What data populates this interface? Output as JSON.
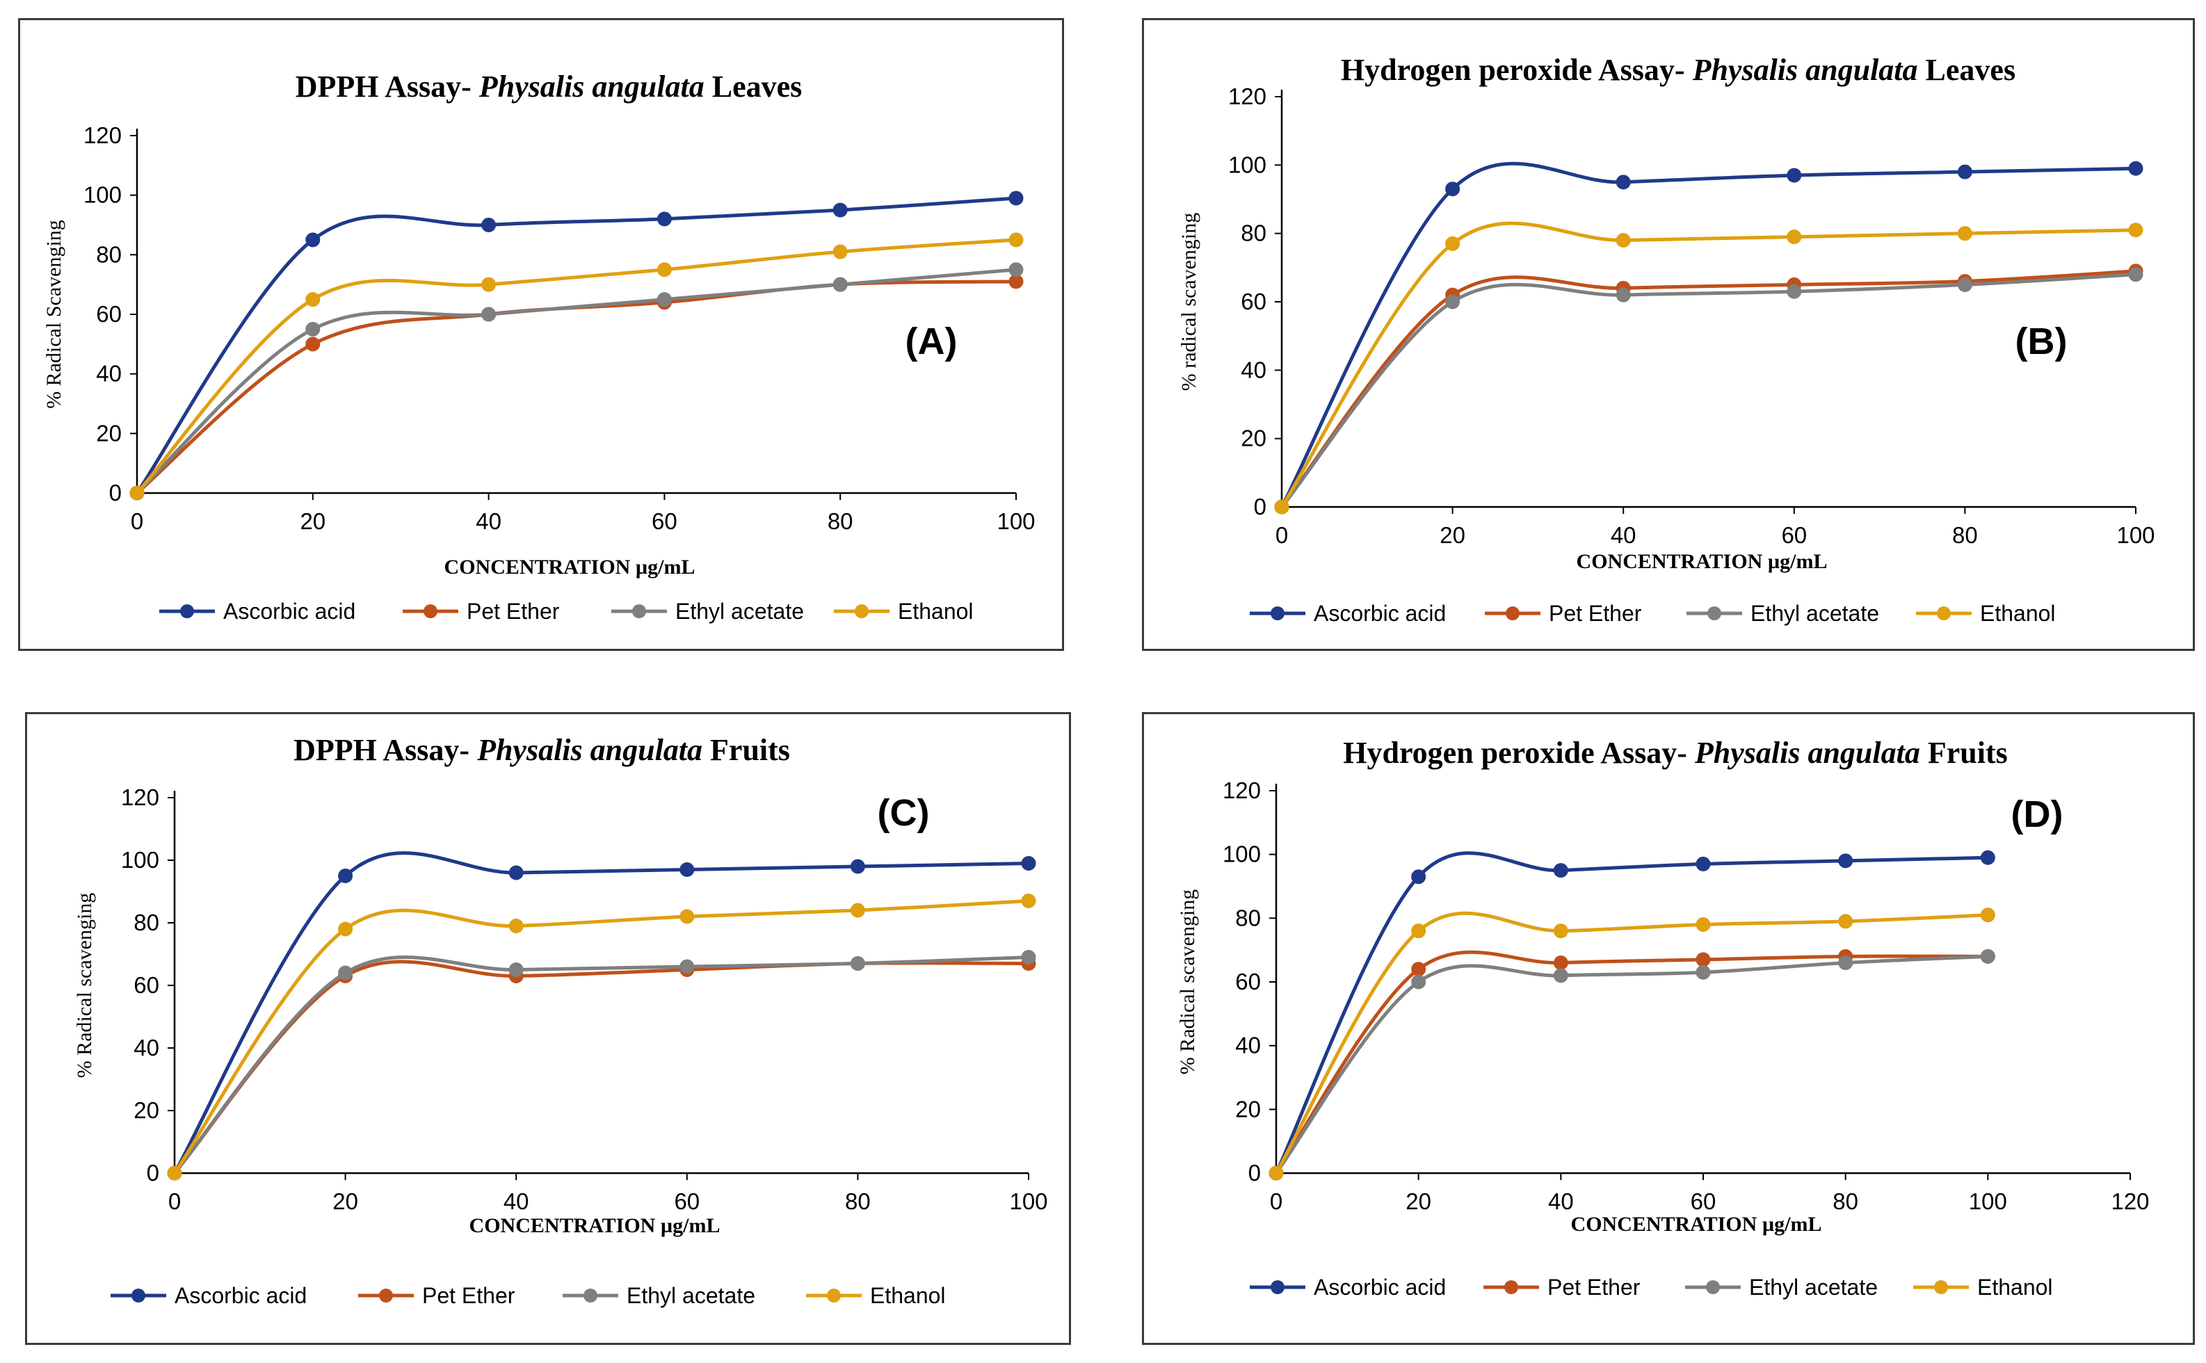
{
  "chart_data": [
    {
      "id": "A",
      "type": "line",
      "title_prefix": "DPPH Assay- ",
      "title_italic": "Physalis angulata",
      "title_suffix": " Leaves",
      "panel_label": "(A)",
      "xlabel": "CONCENTRATION µg/mL",
      "ylabel": "% Radical Scavenging",
      "x": [
        0,
        20,
        40,
        60,
        80,
        100
      ],
      "xticks": [
        0,
        20,
        40,
        60,
        80,
        100
      ],
      "xlim": [
        0,
        100
      ],
      "yticks": [
        0,
        20,
        40,
        60,
        80,
        100,
        120
      ],
      "ylim": [
        0,
        120
      ],
      "series": [
        {
          "name": "Ascorbic acid",
          "color": "#1f3a8a",
          "values": [
            0,
            85,
            90,
            92,
            95,
            99
          ]
        },
        {
          "name": "Pet Ether",
          "color": "#c0501a",
          "values": [
            0,
            50,
            60,
            64,
            70,
            71
          ]
        },
        {
          "name": "Ethyl acetate",
          "color": "#7f7f7f",
          "values": [
            0,
            55,
            60,
            65,
            70,
            75
          ]
        },
        {
          "name": "Ethanol",
          "color": "#e0a010",
          "values": [
            0,
            65,
            70,
            75,
            81,
            85
          ]
        }
      ]
    },
    {
      "id": "B",
      "type": "line",
      "title_prefix": "Hydrogen peroxide Assay- ",
      "title_italic": "Physalis angulata",
      "title_suffix": " Leaves",
      "panel_label": "(B)",
      "xlabel": "CONCENTRATION µg/mL",
      "ylabel": "% radical  scavenging",
      "x": [
        0,
        20,
        40,
        60,
        80,
        100
      ],
      "xticks": [
        0,
        20,
        40,
        60,
        80,
        100
      ],
      "xlim": [
        0,
        100
      ],
      "yticks": [
        0,
        20,
        40,
        60,
        80,
        100,
        120
      ],
      "ylim": [
        0,
        120
      ],
      "series": [
        {
          "name": "Ascorbic acid",
          "color": "#1f3a8a",
          "values": [
            0,
            93,
            95,
            97,
            98,
            99
          ]
        },
        {
          "name": "Pet Ether",
          "color": "#c0501a",
          "values": [
            0,
            62,
            64,
            65,
            66,
            69
          ]
        },
        {
          "name": "Ethyl acetate",
          "color": "#7f7f7f",
          "values": [
            0,
            60,
            62,
            63,
            65,
            68
          ]
        },
        {
          "name": "Ethanol",
          "color": "#e0a010",
          "values": [
            0,
            77,
            78,
            79,
            80,
            81
          ]
        }
      ]
    },
    {
      "id": "C",
      "type": "line",
      "title_prefix": "DPPH Assay- ",
      "title_italic": "Physalis angulata",
      "title_suffix": " Fruits",
      "panel_label": "(C)",
      "xlabel": "CONCENTRATION µg/mL",
      "ylabel": "% Radical scavenging",
      "x": [
        0,
        20,
        40,
        60,
        80,
        100
      ],
      "xticks": [
        0,
        20,
        40,
        60,
        80,
        100
      ],
      "xlim": [
        0,
        100
      ],
      "yticks": [
        0,
        20,
        40,
        60,
        80,
        100,
        120
      ],
      "ylim": [
        0,
        120
      ],
      "series": [
        {
          "name": "Ascorbic acid",
          "color": "#1f3a8a",
          "values": [
            0,
            95,
            96,
            97,
            98,
            99
          ]
        },
        {
          "name": "Pet Ether",
          "color": "#c0501a",
          "values": [
            0,
            63,
            63,
            65,
            67,
            67
          ]
        },
        {
          "name": "Ethyl acetate",
          "color": "#7f7f7f",
          "values": [
            0,
            64,
            65,
            66,
            67,
            69
          ]
        },
        {
          "name": "Ethanol",
          "color": "#e0a010",
          "values": [
            0,
            78,
            79,
            82,
            84,
            87
          ]
        }
      ]
    },
    {
      "id": "D",
      "type": "line",
      "title_prefix": "Hydrogen peroxide Assay- ",
      "title_italic": "Physalis angulata",
      "title_suffix": " Fruits",
      "panel_label": "(D)",
      "xlabel": "CONCENTRATION µg/mL",
      "ylabel": "% Radical scavenging",
      "x": [
        0,
        20,
        40,
        60,
        80,
        100
      ],
      "xticks": [
        0,
        20,
        40,
        60,
        80,
        100,
        120
      ],
      "xlim": [
        0,
        120
      ],
      "yticks": [
        0,
        20,
        40,
        60,
        80,
        100,
        120
      ],
      "ylim": [
        0,
        120
      ],
      "series": [
        {
          "name": "Ascorbic acid",
          "color": "#1f3a8a",
          "values": [
            0,
            93,
            95,
            97,
            98,
            99
          ]
        },
        {
          "name": "Pet Ether",
          "color": "#c0501a",
          "values": [
            0,
            64,
            66,
            67,
            68,
            68
          ]
        },
        {
          "name": "Ethyl acetate",
          "color": "#7f7f7f",
          "values": [
            0,
            60,
            62,
            63,
            66,
            68
          ]
        },
        {
          "name": "Ethanol",
          "color": "#e0a010",
          "values": [
            0,
            76,
            76,
            78,
            79,
            81
          ]
        }
      ]
    }
  ]
}
